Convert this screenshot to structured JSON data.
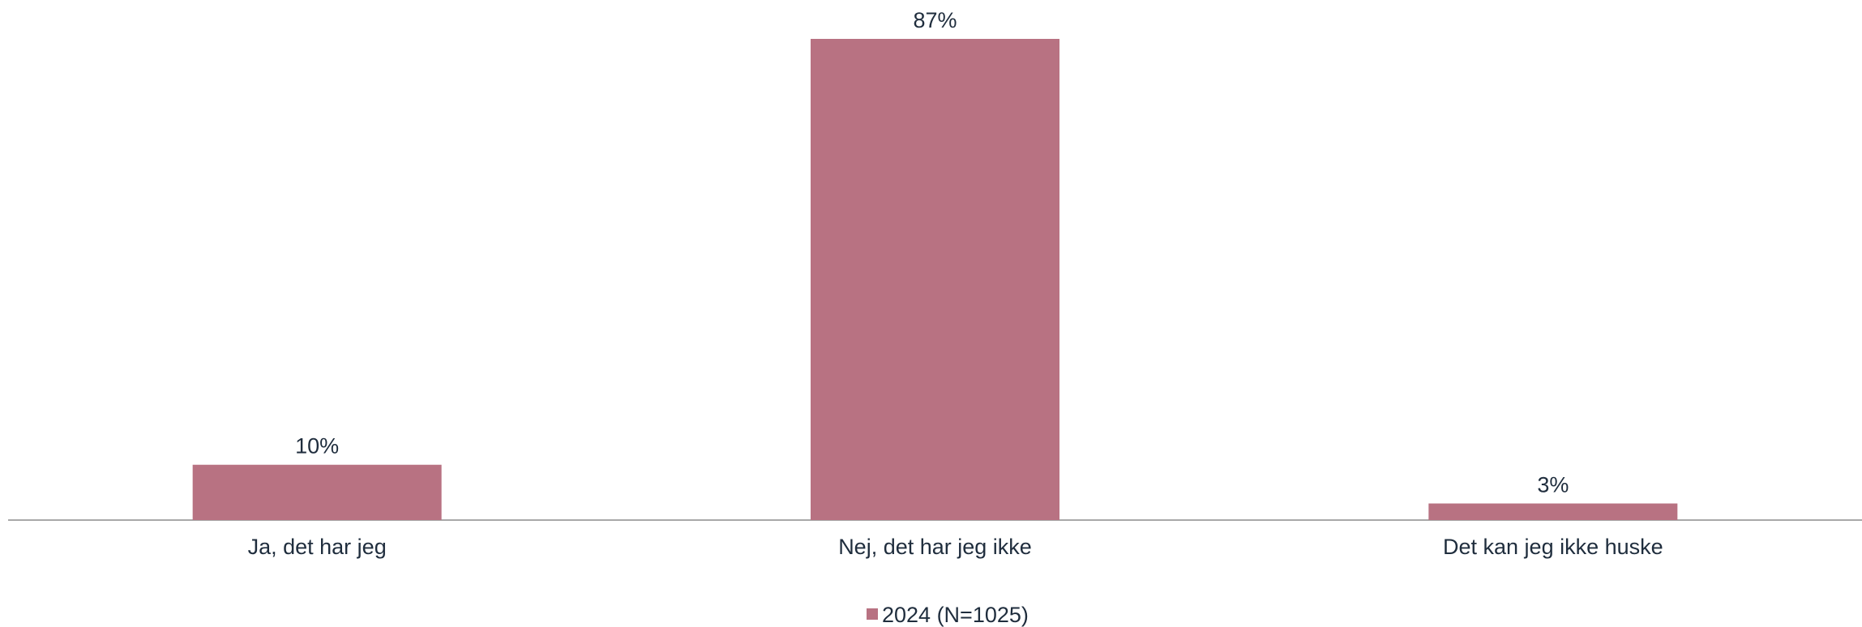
{
  "chart_data": {
    "type": "bar",
    "categories": [
      "Ja, det har jeg",
      "Nej, det har jeg ikke",
      "Det kan jeg ikke huske"
    ],
    "series": [
      {
        "name": "2024 (N=1025)",
        "values": [
          10,
          87,
          3
        ],
        "color": "#b87282"
      }
    ],
    "data_labels": [
      "10%",
      "87%",
      "3%"
    ],
    "ylim": [
      0,
      87
    ],
    "grid": false,
    "legend": "bottom-center",
    "axis_color": "#8c8c8c"
  }
}
